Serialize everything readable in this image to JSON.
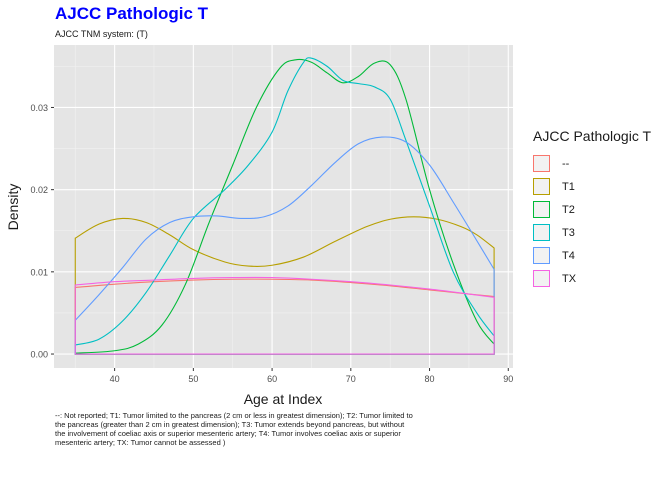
{
  "header": {
    "title": "AJCC Pathologic T",
    "subtitle": "AJCC TNM system: (T)"
  },
  "caption_lines": [
    "--: Not reported; T1: Tumor limited to the pancreas (2 cm or less in greatest dimension); T2: Tumor limited to",
    " the pancreas (greater than 2 cm in greatest dimension); T3: Tumor extends beyond pancreas, but without",
    " the involvement of coeliac axis or superior mesenteric artery; T4: Tumor involves coeliac axis or superior",
    " mesenteric artery; TX: Tumor cannot be assessed )"
  ],
  "legend": {
    "title": "AJCC Pathologic T",
    "items": [
      {
        "label": "--",
        "color": "#F8766D"
      },
      {
        "label": "T1",
        "color": "#B79F00"
      },
      {
        "label": "T2",
        "color": "#00BA38"
      },
      {
        "label": "T3",
        "color": "#00BFC4"
      },
      {
        "label": "T4",
        "color": "#619CFF"
      },
      {
        "label": "TX",
        "color": "#F564E3"
      }
    ]
  },
  "chart_data": {
    "type": "area",
    "xlabel": "Age at Index",
    "ylabel": "Density",
    "xlim": [
      32.3,
      90.6
    ],
    "ylim": [
      -0.0017,
      0.0376
    ],
    "x_ticks": [
      40,
      50,
      60,
      70,
      80,
      90
    ],
    "y_ticks": [
      0,
      0.01,
      0.02,
      0.03
    ],
    "y_tick_labels": [
      "0.00",
      "0.01",
      "0.02",
      "0.03"
    ],
    "grid": true,
    "legend_position": "right",
    "series": [
      {
        "name": "--",
        "color": "#F8766D",
        "points": [
          [
            35,
            0.0081
          ],
          [
            40,
            0.0085
          ],
          [
            45,
            0.0088
          ],
          [
            50,
            0.009
          ],
          [
            55,
            0.0091
          ],
          [
            60,
            0.0091
          ],
          [
            65,
            0.009
          ],
          [
            70,
            0.0087
          ],
          [
            75,
            0.0083
          ],
          [
            80,
            0.0078
          ],
          [
            85,
            0.0073
          ],
          [
            88.2,
            0.007
          ]
        ]
      },
      {
        "name": "T1",
        "color": "#B79F00",
        "points": [
          [
            35,
            0.0141
          ],
          [
            38,
            0.0158
          ],
          [
            41,
            0.0165
          ],
          [
            44,
            0.016
          ],
          [
            47,
            0.0145
          ],
          [
            50,
            0.0127
          ],
          [
            54,
            0.0112
          ],
          [
            57,
            0.0107
          ],
          [
            60,
            0.0108
          ],
          [
            64,
            0.0118
          ],
          [
            68,
            0.0137
          ],
          [
            72,
            0.0155
          ],
          [
            75,
            0.0164
          ],
          [
            78,
            0.0167
          ],
          [
            81,
            0.0164
          ],
          [
            84,
            0.0155
          ],
          [
            86,
            0.0145
          ],
          [
            88.2,
            0.0129
          ]
        ]
      },
      {
        "name": "T2",
        "color": "#00BA38",
        "points": [
          [
            35,
            0.0001
          ],
          [
            40,
            0.0004
          ],
          [
            43,
            0.0012
          ],
          [
            46,
            0.0035
          ],
          [
            49,
            0.0085
          ],
          [
            52,
            0.016
          ],
          [
            55,
            0.023
          ],
          [
            58,
            0.03
          ],
          [
            61,
            0.0348
          ],
          [
            63,
            0.0358
          ],
          [
            65,
            0.0355
          ],
          [
            67,
            0.0342
          ],
          [
            69,
            0.033
          ],
          [
            71,
            0.0338
          ],
          [
            73,
            0.0354
          ],
          [
            75,
            0.0352
          ],
          [
            77,
            0.031
          ],
          [
            80,
            0.02
          ],
          [
            83,
            0.011
          ],
          [
            86,
            0.004
          ],
          [
            88.2,
            0.0012
          ]
        ]
      },
      {
        "name": "T3",
        "color": "#00BFC4",
        "points": [
          [
            35,
            0.0011
          ],
          [
            38,
            0.0018
          ],
          [
            41,
            0.004
          ],
          [
            44,
            0.0075
          ],
          [
            47,
            0.012
          ],
          [
            50,
            0.0165
          ],
          [
            54,
            0.02
          ],
          [
            57,
            0.023
          ],
          [
            60,
            0.027
          ],
          [
            62,
            0.032
          ],
          [
            64,
            0.0355
          ],
          [
            65,
            0.036
          ],
          [
            67,
            0.035
          ],
          [
            69,
            0.0333
          ],
          [
            71,
            0.0329
          ],
          [
            73,
            0.0325
          ],
          [
            75,
            0.031
          ],
          [
            77,
            0.026
          ],
          [
            80,
            0.018
          ],
          [
            83,
            0.01
          ],
          [
            86,
            0.005
          ],
          [
            88.2,
            0.0022
          ]
        ]
      },
      {
        "name": "T4",
        "color": "#619CFF",
        "points": [
          [
            35,
            0.0041
          ],
          [
            38,
            0.0072
          ],
          [
            41,
            0.0105
          ],
          [
            44,
            0.014
          ],
          [
            47,
            0.016
          ],
          [
            50,
            0.0167
          ],
          [
            53,
            0.0168
          ],
          [
            56,
            0.0165
          ],
          [
            59,
            0.0167
          ],
          [
            62,
            0.018
          ],
          [
            65,
            0.0205
          ],
          [
            68,
            0.0233
          ],
          [
            71,
            0.0256
          ],
          [
            74,
            0.0264
          ],
          [
            77,
            0.0258
          ],
          [
            80,
            0.023
          ],
          [
            83,
            0.0185
          ],
          [
            86,
            0.0138
          ],
          [
            88.2,
            0.0103
          ]
        ]
      },
      {
        "name": "TX",
        "color": "#F564E3",
        "points": [
          [
            35,
            0.0084
          ],
          [
            40,
            0.0088
          ],
          [
            45,
            0.009
          ],
          [
            50,
            0.0092
          ],
          [
            55,
            0.0093
          ],
          [
            60,
            0.0093
          ],
          [
            65,
            0.0091
          ],
          [
            70,
            0.0088
          ],
          [
            75,
            0.0084
          ],
          [
            80,
            0.0079
          ],
          [
            85,
            0.0073
          ],
          [
            88.2,
            0.0069
          ]
        ]
      }
    ]
  }
}
